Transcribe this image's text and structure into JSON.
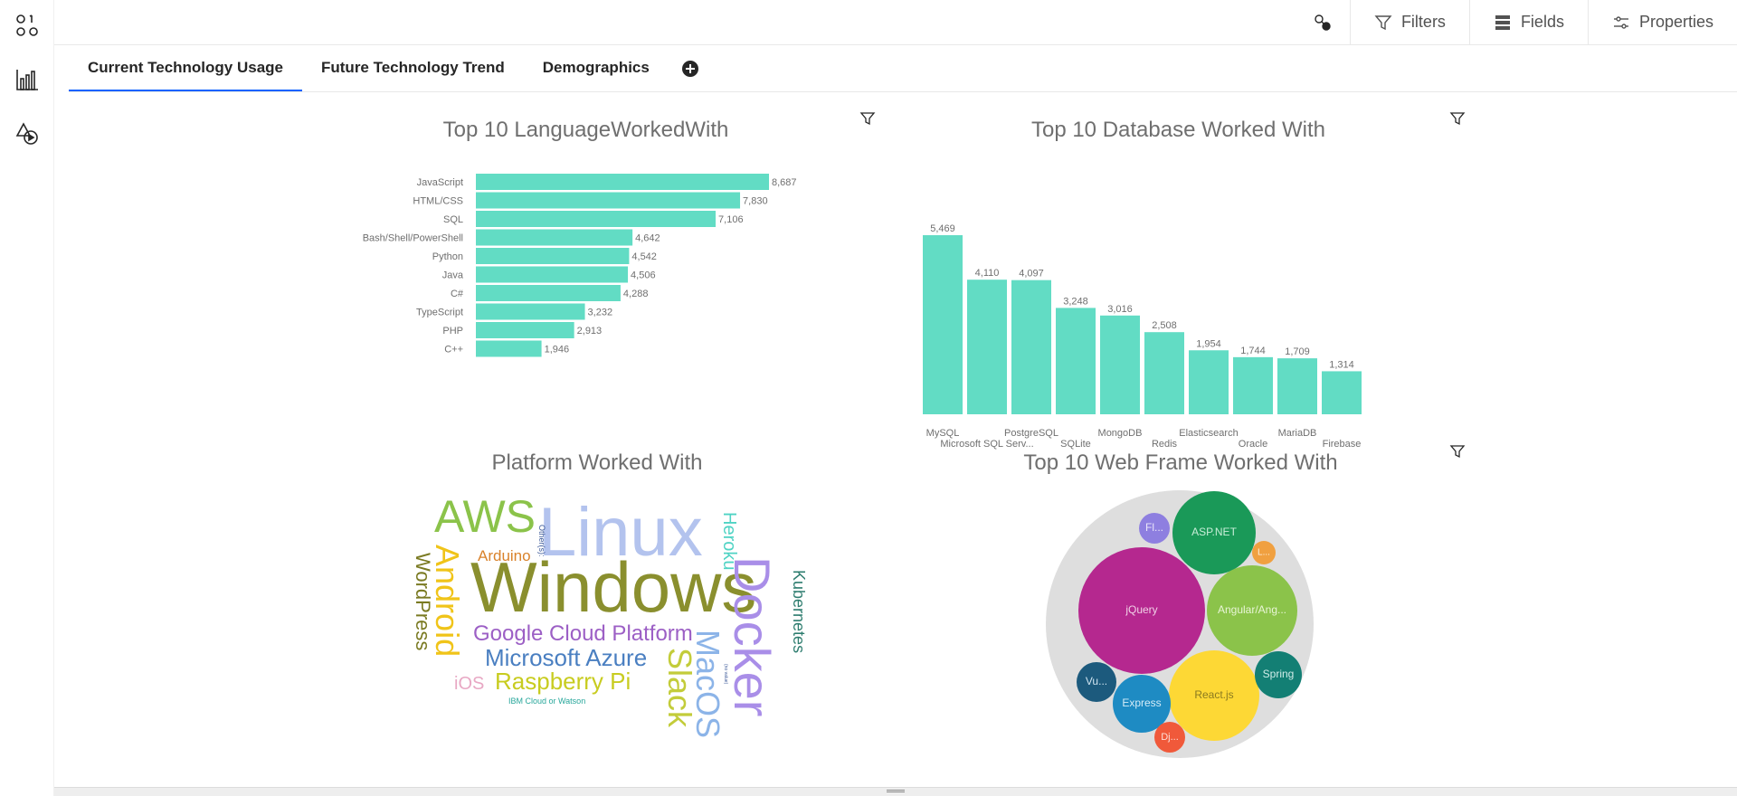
{
  "toolbar": {
    "items": [
      {
        "label": "",
        "icon": "connection-icon"
      },
      {
        "label": "Filters",
        "icon": "filter-icon"
      },
      {
        "label": "Fields",
        "icon": "fields-icon"
      },
      {
        "label": "Properties",
        "icon": "sliders-icon"
      }
    ]
  },
  "rail": {
    "items": [
      {
        "icon": "data-icon"
      },
      {
        "icon": "bar-chart-icon"
      },
      {
        "icon": "shapes-play-icon"
      }
    ]
  },
  "tabs": [
    {
      "label": "Current Technology Usage",
      "active": true
    },
    {
      "label": "Future Technology Trend",
      "active": false
    },
    {
      "label": "Demographics",
      "active": false
    }
  ],
  "colors": {
    "accent": "#0f62fe",
    "bar": "#62dcc4",
    "title": "#6f6f6f"
  },
  "widgets": {
    "languages": {
      "title": "Top 10 LanguageWorkedWith",
      "chart_data": {
        "type": "bar",
        "orientation": "horizontal",
        "categories": [
          "JavaScript",
          "HTML/CSS",
          "SQL",
          "Bash/Shell/PowerShell",
          "Python",
          "Java",
          "C#",
          "TypeScript",
          "PHP",
          "C++"
        ],
        "values": [
          8687,
          7830,
          7106,
          4642,
          4542,
          4506,
          4288,
          3232,
          2913,
          1946
        ],
        "value_labels": [
          "8,687",
          "7,830",
          "7,106",
          "4,642",
          "4,542",
          "4,506",
          "4,288",
          "3,232",
          "2,913",
          "1,946"
        ],
        "xlim": [
          0,
          8687
        ]
      }
    },
    "databases": {
      "title": "Top 10 Database Worked With",
      "chart_data": {
        "type": "bar",
        "orientation": "vertical",
        "categories": [
          "MySQL",
          "Microsoft SQL Serv...",
          "PostgreSQL",
          "SQLite",
          "MongoDB",
          "Redis",
          "Elasticsearch",
          "Oracle",
          "MariaDB",
          "Firebase"
        ],
        "values": [
          5469,
          4110,
          4097,
          3248,
          3016,
          2508,
          1954,
          1744,
          1709,
          1314
        ],
        "value_labels": [
          "5,469",
          "4,110",
          "4,097",
          "3,248",
          "3,016",
          "2,508",
          "1,954",
          "1,744",
          "1,709",
          "1,314"
        ],
        "ylim": [
          0,
          5469
        ]
      }
    },
    "platforms": {
      "title": "Platform Worked With",
      "words": [
        {
          "text": "Windows",
          "color": "#8a8f2e"
        },
        {
          "text": "Linux",
          "color": "#b3c3ee"
        },
        {
          "text": "Docker",
          "color": "#a98ee8"
        },
        {
          "text": "AWS",
          "color": "#8bc34a"
        },
        {
          "text": "Android",
          "color": "#f0c419"
        },
        {
          "text": "MacOS",
          "color": "#8cb4e8"
        },
        {
          "text": "Slack",
          "color": "#c3cc3a"
        },
        {
          "text": "Google Cloud Platform",
          "color": "#9c5fc5"
        },
        {
          "text": "Microsoft Azure",
          "color": "#4a7fc1"
        },
        {
          "text": "Raspberry Pi",
          "color": "#c8cc20"
        },
        {
          "text": "WordPress",
          "color": "#7a7a22"
        },
        {
          "text": "Heroku",
          "color": "#4fd3c4"
        },
        {
          "text": "Kubernetes",
          "color": "#2e7d6f"
        },
        {
          "text": "Arduino",
          "color": "#d9822b"
        },
        {
          "text": "iOS",
          "color": "#e8a8c4"
        },
        {
          "text": "IBM Cloud or Watson",
          "color": "#26a69a"
        },
        {
          "text": "Other(s):",
          "color": "#3d5a99"
        },
        {
          "text": "(no value)",
          "color": "#3d5a99"
        }
      ]
    },
    "webframes": {
      "title": "Top 10 Web Frame Worked With",
      "chart_data": {
        "type": "bubble",
        "items": [
          {
            "label": "jQuery",
            "color": "#b5288f"
          },
          {
            "label": "ASP.NET",
            "color": "#1a9958"
          },
          {
            "label": "Angular/Ang...",
            "color": "#8bc34a"
          },
          {
            "label": "React.js",
            "color": "#fdd835"
          },
          {
            "label": "Express",
            "color": "#1e8bc3"
          },
          {
            "label": "Spring",
            "color": "#137f74"
          },
          {
            "label": "Vu...",
            "color": "#1c5a7d"
          },
          {
            "label": "Fl...",
            "color": "#8e7fe0"
          },
          {
            "label": "L...",
            "color": "#f0a040"
          },
          {
            "label": "Dj...",
            "color": "#f0593a"
          }
        ]
      }
    }
  }
}
